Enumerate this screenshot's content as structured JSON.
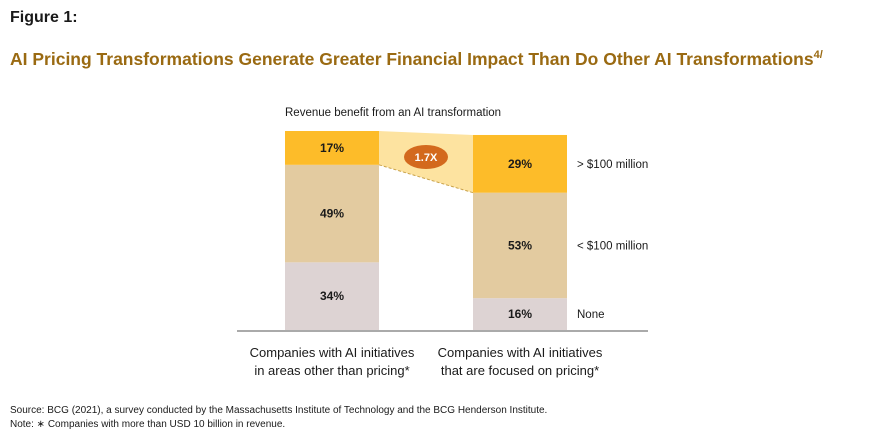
{
  "figure_label": "Figure 1:",
  "title": "AI Pricing Transformations Generate Greater Financial Impact Than Do Other AI Transformations",
  "title_footnote": "4/",
  "chart_data": {
    "type": "bar",
    "stacked": true,
    "subtitle": "Revenue benefit from an AI transformation",
    "categories": [
      [
        "Companies with AI initiatives",
        "in areas other than pricing*"
      ],
      [
        "Companies with AI initiatives",
        "that are focused on pricing*"
      ]
    ],
    "series": [
      {
        "name": "None",
        "values": [
          34,
          16
        ],
        "color": "#ddd3d3"
      },
      {
        "name": "< $100 million",
        "values": [
          49,
          53
        ],
        "color": "#e3cba0"
      },
      {
        "name": "> $100 million",
        "values": [
          17,
          29
        ],
        "color": "#fdbc29"
      }
    ],
    "value_suffix": "%",
    "ylim": [
      0,
      100
    ],
    "legend_placement": "right",
    "annotation": {
      "text": "1.7X",
      "color": "#d3691d",
      "band_color": "#fde3a0"
    }
  },
  "source": "Source: BCG (2021), a survey conducted by the Massachusetts Institute of Technology and the BCG Henderson Institute.",
  "note": "Note: ∗ Companies with more than USD 10 billion in revenue."
}
